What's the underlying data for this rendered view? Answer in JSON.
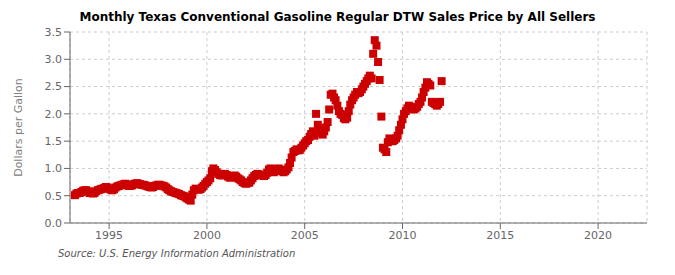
{
  "chart_data": {
    "type": "scatter",
    "title": "Monthly Texas Conventional Gasoline Regular DTW Sales Price by All Sellers",
    "y_label": "Dollars per Gallon",
    "annotations": [
      "Source: U.S. Energy Information Administration"
    ],
    "color": "#CC0000",
    "marker": "square",
    "grid": true,
    "xlim": [
      1993.0,
      2022.5
    ],
    "ylim": [
      0.0,
      3.5
    ],
    "xticks": [
      1995,
      2000,
      2005,
      2010,
      2015,
      2020
    ],
    "yticks": [
      {
        "value": 0.0,
        "label": "0.0"
      },
      0.5,
      {
        "value": 1.0,
        "label": "1.0"
      },
      1.5,
      {
        "value": 2.0,
        "label": "2.0"
      },
      2.5,
      {
        "value": 3.0,
        "label": "3.0"
      },
      3.5
    ],
    "x": [
      1993.25,
      1993.33,
      1993.42,
      1993.5,
      1993.58,
      1993.67,
      1993.75,
      1993.83,
      1993.92,
      1994.0,
      1994.08,
      1994.17,
      1994.25,
      1994.33,
      1994.42,
      1994.5,
      1994.58,
      1994.67,
      1994.75,
      1994.83,
      1994.92,
      1995.0,
      1995.08,
      1995.17,
      1995.25,
      1995.33,
      1995.42,
      1995.5,
      1995.58,
      1995.67,
      1995.75,
      1995.83,
      1995.92,
      1996.0,
      1996.08,
      1996.17,
      1996.25,
      1996.33,
      1996.42,
      1996.5,
      1996.58,
      1996.67,
      1996.75,
      1996.83,
      1996.92,
      1997.0,
      1997.08,
      1997.17,
      1997.25,
      1997.33,
      1997.42,
      1997.5,
      1997.58,
      1997.67,
      1997.75,
      1997.83,
      1997.92,
      1998.0,
      1998.08,
      1998.17,
      1998.25,
      1998.33,
      1998.42,
      1998.5,
      1998.58,
      1998.67,
      1998.75,
      1998.83,
      1998.92,
      1999.0,
      1999.08,
      1999.17,
      1999.25,
      1999.33,
      1999.42,
      1999.5,
      1999.58,
      1999.67,
      1999.75,
      1999.83,
      1999.92,
      2000.0,
      2000.08,
      2000.17,
      2000.25,
      2000.33,
      2000.42,
      2000.5,
      2000.58,
      2000.67,
      2000.75,
      2000.83,
      2000.92,
      2001.0,
      2001.08,
      2001.17,
      2001.25,
      2001.33,
      2001.42,
      2001.5,
      2001.58,
      2001.67,
      2001.75,
      2001.83,
      2001.92,
      2002.0,
      2002.08,
      2002.17,
      2002.25,
      2002.33,
      2002.42,
      2002.5,
      2002.58,
      2002.67,
      2002.75,
      2002.83,
      2002.92,
      2003.0,
      2003.08,
      2003.17,
      2003.25,
      2003.33,
      2003.42,
      2003.5,
      2003.58,
      2003.67,
      2003.75,
      2003.83,
      2003.92,
      2004.0,
      2004.08,
      2004.17,
      2004.25,
      2004.33,
      2004.42,
      2004.5,
      2004.58,
      2004.67,
      2004.75,
      2004.83,
      2004.92,
      2005.0,
      2005.08,
      2005.17,
      2005.25,
      2005.33,
      2005.42,
      2005.5,
      2005.58,
      2005.67,
      2005.75,
      2005.83,
      2005.92,
      2006.0,
      2006.08,
      2006.17,
      2006.25,
      2006.33,
      2006.42,
      2006.5,
      2006.58,
      2006.67,
      2006.75,
      2006.83,
      2006.92,
      2007.0,
      2007.08,
      2007.17,
      2007.25,
      2007.33,
      2007.42,
      2007.5,
      2007.58,
      2007.67,
      2007.75,
      2007.83,
      2007.92,
      2008.0,
      2008.08,
      2008.17,
      2008.25,
      2008.33,
      2008.42,
      2008.5,
      2008.58,
      2008.67,
      2008.75,
      2008.83,
      2008.92,
      2009.0,
      2009.08,
      2009.17,
      2009.25,
      2009.33,
      2009.42,
      2009.5,
      2009.58,
      2009.67,
      2009.75,
      2009.83,
      2009.92,
      2010.0,
      2010.08,
      2010.17,
      2010.25,
      2010.33,
      2010.42,
      2010.5,
      2010.58,
      2010.67,
      2010.75,
      2010.83,
      2010.92,
      2011.0,
      2011.08,
      2011.17,
      2011.25,
      2011.33,
      2011.42,
      2011.5,
      2011.58,
      2011.67,
      2011.75,
      2011.83,
      2011.92,
      2012.0
    ],
    "values": [
      0.51,
      0.54,
      0.55,
      0.55,
      0.57,
      0.59,
      0.6,
      0.6,
      0.58,
      0.55,
      0.55,
      0.54,
      0.55,
      0.58,
      0.6,
      0.61,
      0.62,
      0.63,
      0.64,
      0.66,
      0.65,
      0.63,
      0.61,
      0.6,
      0.62,
      0.65,
      0.67,
      0.68,
      0.69,
      0.7,
      0.71,
      0.72,
      0.7,
      0.68,
      0.68,
      0.69,
      0.71,
      0.72,
      0.73,
      0.72,
      0.71,
      0.7,
      0.7,
      0.69,
      0.68,
      0.67,
      0.66,
      0.65,
      0.66,
      0.68,
      0.69,
      0.7,
      0.7,
      0.69,
      0.68,
      0.67,
      0.65,
      0.62,
      0.6,
      0.58,
      0.57,
      0.56,
      0.55,
      0.54,
      0.53,
      0.51,
      0.5,
      0.49,
      0.47,
      0.45,
      0.43,
      0.41,
      0.52,
      0.6,
      0.63,
      0.62,
      0.61,
      0.62,
      0.65,
      0.68,
      0.72,
      0.75,
      0.78,
      0.82,
      0.95,
      1.0,
      0.97,
      0.93,
      0.9,
      0.88,
      0.87,
      0.88,
      0.9,
      0.88,
      0.85,
      0.83,
      0.84,
      0.86,
      0.87,
      0.85,
      0.82,
      0.8,
      0.78,
      0.75,
      0.73,
      0.72,
      0.73,
      0.74,
      0.78,
      0.82,
      0.86,
      0.88,
      0.9,
      0.89,
      0.88,
      0.87,
      0.86,
      0.88,
      0.92,
      0.98,
      1.0,
      0.97,
      0.93,
      0.96,
      0.99,
      1.0,
      0.97,
      0.95,
      0.93,
      0.95,
      0.98,
      1.02,
      1.1,
      1.2,
      1.3,
      1.32,
      1.35,
      1.33,
      1.34,
      1.38,
      1.42,
      1.46,
      1.5,
      1.52,
      1.58,
      1.63,
      1.68,
      1.6,
      2.0,
      1.8,
      1.72,
      1.65,
      1.62,
      1.68,
      1.75,
      1.85,
      2.08,
      2.35,
      2.37,
      2.3,
      2.25,
      2.15,
      2.05,
      2.0,
      1.98,
      1.92,
      1.9,
      1.93,
      2.05,
      2.17,
      2.25,
      2.3,
      2.35,
      2.4,
      2.38,
      2.4,
      2.45,
      2.5,
      2.55,
      2.6,
      2.65,
      2.7,
      2.65,
      3.1,
      3.35,
      3.25,
      2.95,
      2.62,
      1.95,
      1.38,
      1.35,
      1.3,
      1.48,
      1.55,
      1.5,
      1.5,
      1.52,
      1.55,
      1.6,
      1.7,
      1.8,
      1.9,
      2.0,
      2.05,
      2.1,
      2.15,
      2.12,
      2.1,
      2.08,
      2.1,
      2.13,
      2.18,
      2.22,
      2.3,
      2.4,
      2.48,
      2.58,
      2.55,
      2.52,
      2.22,
      2.2,
      2.18,
      2.15,
      2.18,
      2.22,
      2.6
    ]
  }
}
